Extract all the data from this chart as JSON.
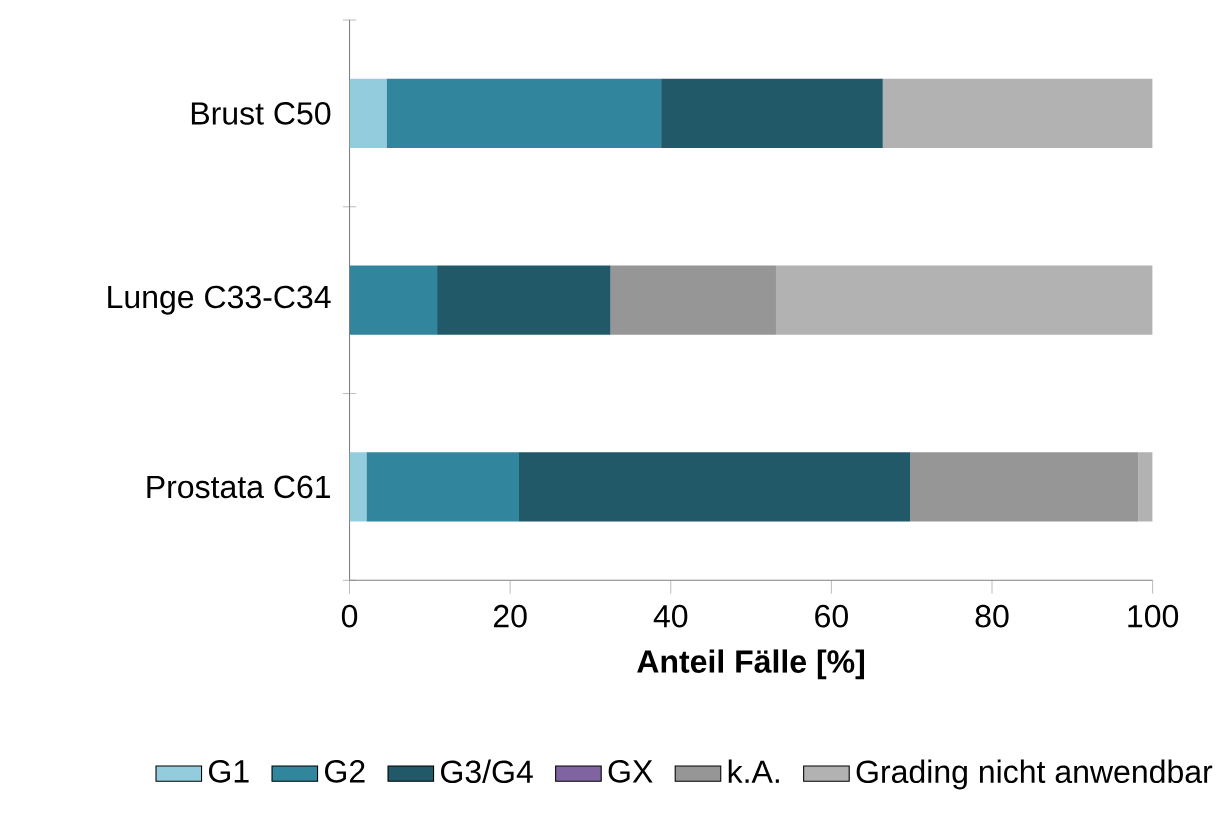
{
  "chart_data": {
    "type": "bar",
    "orientation": "horizontal",
    "stacked": true,
    "xlabel": "Anteil Fälle [%]",
    "categories": [
      "Brust C50",
      "Lunge C33-C34",
      "Prostata C61"
    ],
    "series": [
      {
        "name": "G1",
        "color": "#93cddd",
        "values": [
          4.6,
          0,
          2.1
        ]
      },
      {
        "name": "G2",
        "color": "#31859c",
        "values": [
          34.2,
          10.9,
          19.0
        ]
      },
      {
        "name": "G3/G4",
        "color": "#215968",
        "values": [
          27.6,
          21.6,
          48.7
        ]
      },
      {
        "name": "GX",
        "color": "#8064a2",
        "values": [
          0,
          0,
          0
        ]
      },
      {
        "name": "k.A.",
        "color": "#969696",
        "values": [
          0,
          20.6,
          28.4
        ]
      },
      {
        "name": "Grading nicht anwendbar",
        "color": "#b2b2b2",
        "values": [
          33.6,
          46.9,
          1.8
        ]
      }
    ],
    "xlim": [
      0,
      100
    ],
    "xticks": [
      0,
      20,
      40,
      60,
      80,
      100
    ],
    "legend": "bottom",
    "grid": false
  }
}
